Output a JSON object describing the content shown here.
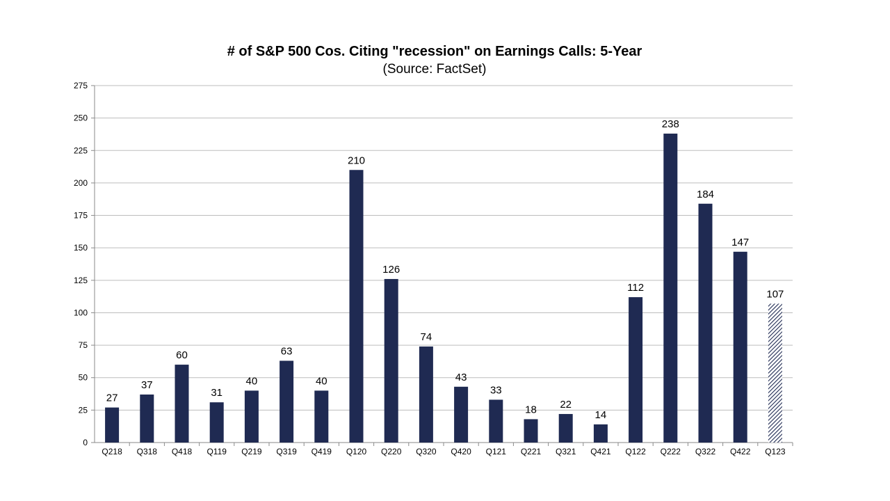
{
  "chart_data": {
    "type": "bar",
    "title": "# of S&P 500 Cos. Citing \"recession\" on Earnings Calls: 5-Year",
    "subtitle": "(Source: FactSet)",
    "xlabel": "",
    "ylabel": "",
    "categories": [
      "Q218",
      "Q318",
      "Q418",
      "Q119",
      "Q219",
      "Q319",
      "Q419",
      "Q120",
      "Q220",
      "Q320",
      "Q420",
      "Q121",
      "Q221",
      "Q321",
      "Q421",
      "Q122",
      "Q222",
      "Q322",
      "Q422",
      "Q123"
    ],
    "values": [
      27,
      37,
      60,
      31,
      40,
      63,
      40,
      210,
      126,
      74,
      43,
      33,
      18,
      22,
      14,
      112,
      238,
      184,
      147,
      107
    ],
    "ylim": [
      0,
      275
    ],
    "yticks": [
      0,
      25,
      50,
      75,
      100,
      125,
      150,
      175,
      200,
      225,
      250,
      275
    ],
    "grid": true,
    "legend": "none",
    "colors": {
      "bar": "#1f2a52",
      "highlight_hatch": "#1f2a52",
      "grid": "#bdbdbd"
    },
    "hatched_categories": [
      "Q123"
    ]
  }
}
